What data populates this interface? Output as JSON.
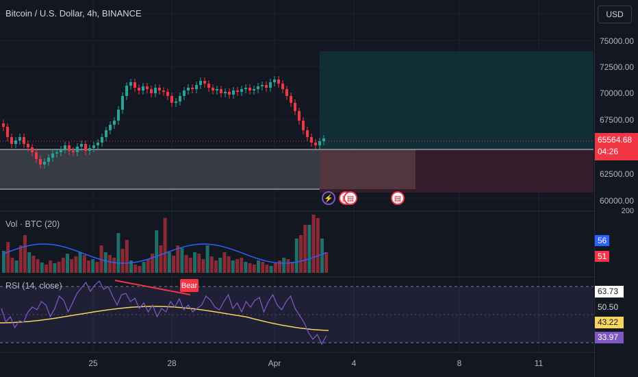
{
  "header": {
    "title": "Bitcoin / U.S. Dollar, 4h, BINANCE",
    "currency_button": "USD"
  },
  "price_axis": {
    "labels": [
      "75000.00",
      "72500.00",
      "70000.00",
      "67500.00",
      "62500.00",
      "60000.00"
    ],
    "current_price": "65564.68",
    "countdown": "04:26",
    "current_price_color": "#f23645"
  },
  "volume_pane": {
    "label": "Vol · BTC (20)",
    "axis_label": "200",
    "tag_ma": "56",
    "tag_ma_color": "#2962ff",
    "tag_vol": "51",
    "tag_vol_color": "#f23645"
  },
  "rsi_pane": {
    "label": "RSI (14, close)",
    "tag_upper": "63.73",
    "tag_mid": "50.50",
    "tag_ma": "43.22",
    "tag_ma_color": "#f9d45c",
    "tag_rsi": "33.97",
    "tag_rsi_color": "#7e57c2",
    "divergence_badge": "Bear",
    "badge_color": "#f23645"
  },
  "time_axis": {
    "labels": [
      "25",
      "28",
      "Apr",
      "4",
      "8",
      "11"
    ]
  },
  "events": [
    "lightning-icon",
    "us-flag-icon",
    "us-flag-icon",
    "us-flag-icon"
  ],
  "colors": {
    "up": "#26a69a",
    "down": "#f23645",
    "background": "#131722"
  }
}
